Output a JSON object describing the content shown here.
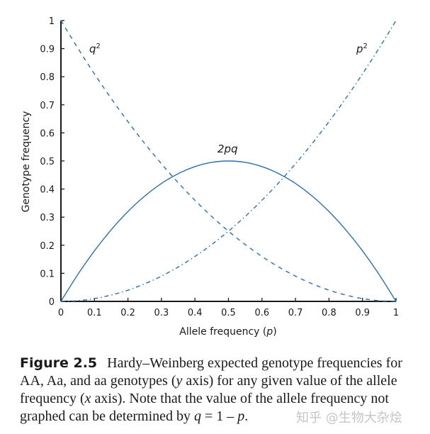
{
  "chart_data": {
    "type": "line",
    "xlabel": "Allele frequency (p)",
    "ylabel": "Genotype frequency",
    "xlim": [
      0,
      1
    ],
    "ylim": [
      0,
      1
    ],
    "xticks": [
      "0",
      "0.1",
      "0.2",
      "0.3",
      "0.4",
      "0.5",
      "0.6",
      "0.7",
      "0.8",
      "0.9",
      "1"
    ],
    "yticks": [
      "0",
      "0.1",
      "0.2",
      "0.3",
      "0.4",
      "0.5",
      "0.6",
      "0.7",
      "0.8",
      "0.9",
      "1"
    ],
    "grid": false,
    "x": [
      0,
      0.05,
      0.1,
      0.15,
      0.2,
      0.25,
      0.3,
      0.35,
      0.4,
      0.45,
      0.5,
      0.55,
      0.6,
      0.65,
      0.7,
      0.75,
      0.8,
      0.85,
      0.9,
      0.95,
      1
    ],
    "series": [
      {
        "name": "q²",
        "style": "dashed",
        "values": [
          1,
          0.9025,
          0.81,
          0.7225,
          0.64,
          0.5625,
          0.49,
          0.4225,
          0.36,
          0.3025,
          0.25,
          0.2025,
          0.16,
          0.1225,
          0.09,
          0.0625,
          0.04,
          0.0225,
          0.01,
          0.0025,
          0
        ]
      },
      {
        "name": "2pq",
        "style": "solid",
        "values": [
          0,
          0.095,
          0.18,
          0.255,
          0.32,
          0.375,
          0.42,
          0.455,
          0.48,
          0.495,
          0.5,
          0.495,
          0.48,
          0.455,
          0.42,
          0.375,
          0.32,
          0.255,
          0.18,
          0.095,
          0
        ]
      },
      {
        "name": "p²",
        "style": "dash-dot",
        "values": [
          0,
          0.0025,
          0.01,
          0.0225,
          0.04,
          0.0625,
          0.09,
          0.1225,
          0.16,
          0.2025,
          0.25,
          0.3025,
          0.36,
          0.4225,
          0.49,
          0.5625,
          0.64,
          0.7225,
          0.81,
          0.9025,
          1
        ]
      }
    ],
    "colors": {
      "curve": "#2f6fa8",
      "axis": "#1a1a1a"
    }
  },
  "labels": {
    "xlabel_prefix": "Allele frequency (",
    "xlabel_var": "p",
    "xlabel_suffix": ")",
    "q2": "q",
    "p2": "p",
    "sup": "2",
    "pq": "2pq"
  },
  "caption": {
    "figure": "Figure 2.5",
    "t1": "Hardy–Weinberg expected genotype frequencies for AA, Aa, and aa genotypes (",
    "y": "y",
    "t2": " axis) for any given value of the allele frequency (",
    "x": "x",
    "t3": " axis). Note that the value of the allele frequency not graphed can be determined by ",
    "q": "q",
    "t4": " = 1 – ",
    "p": "p",
    "t5": "."
  },
  "watermark": "知乎 @生物大杂烩"
}
